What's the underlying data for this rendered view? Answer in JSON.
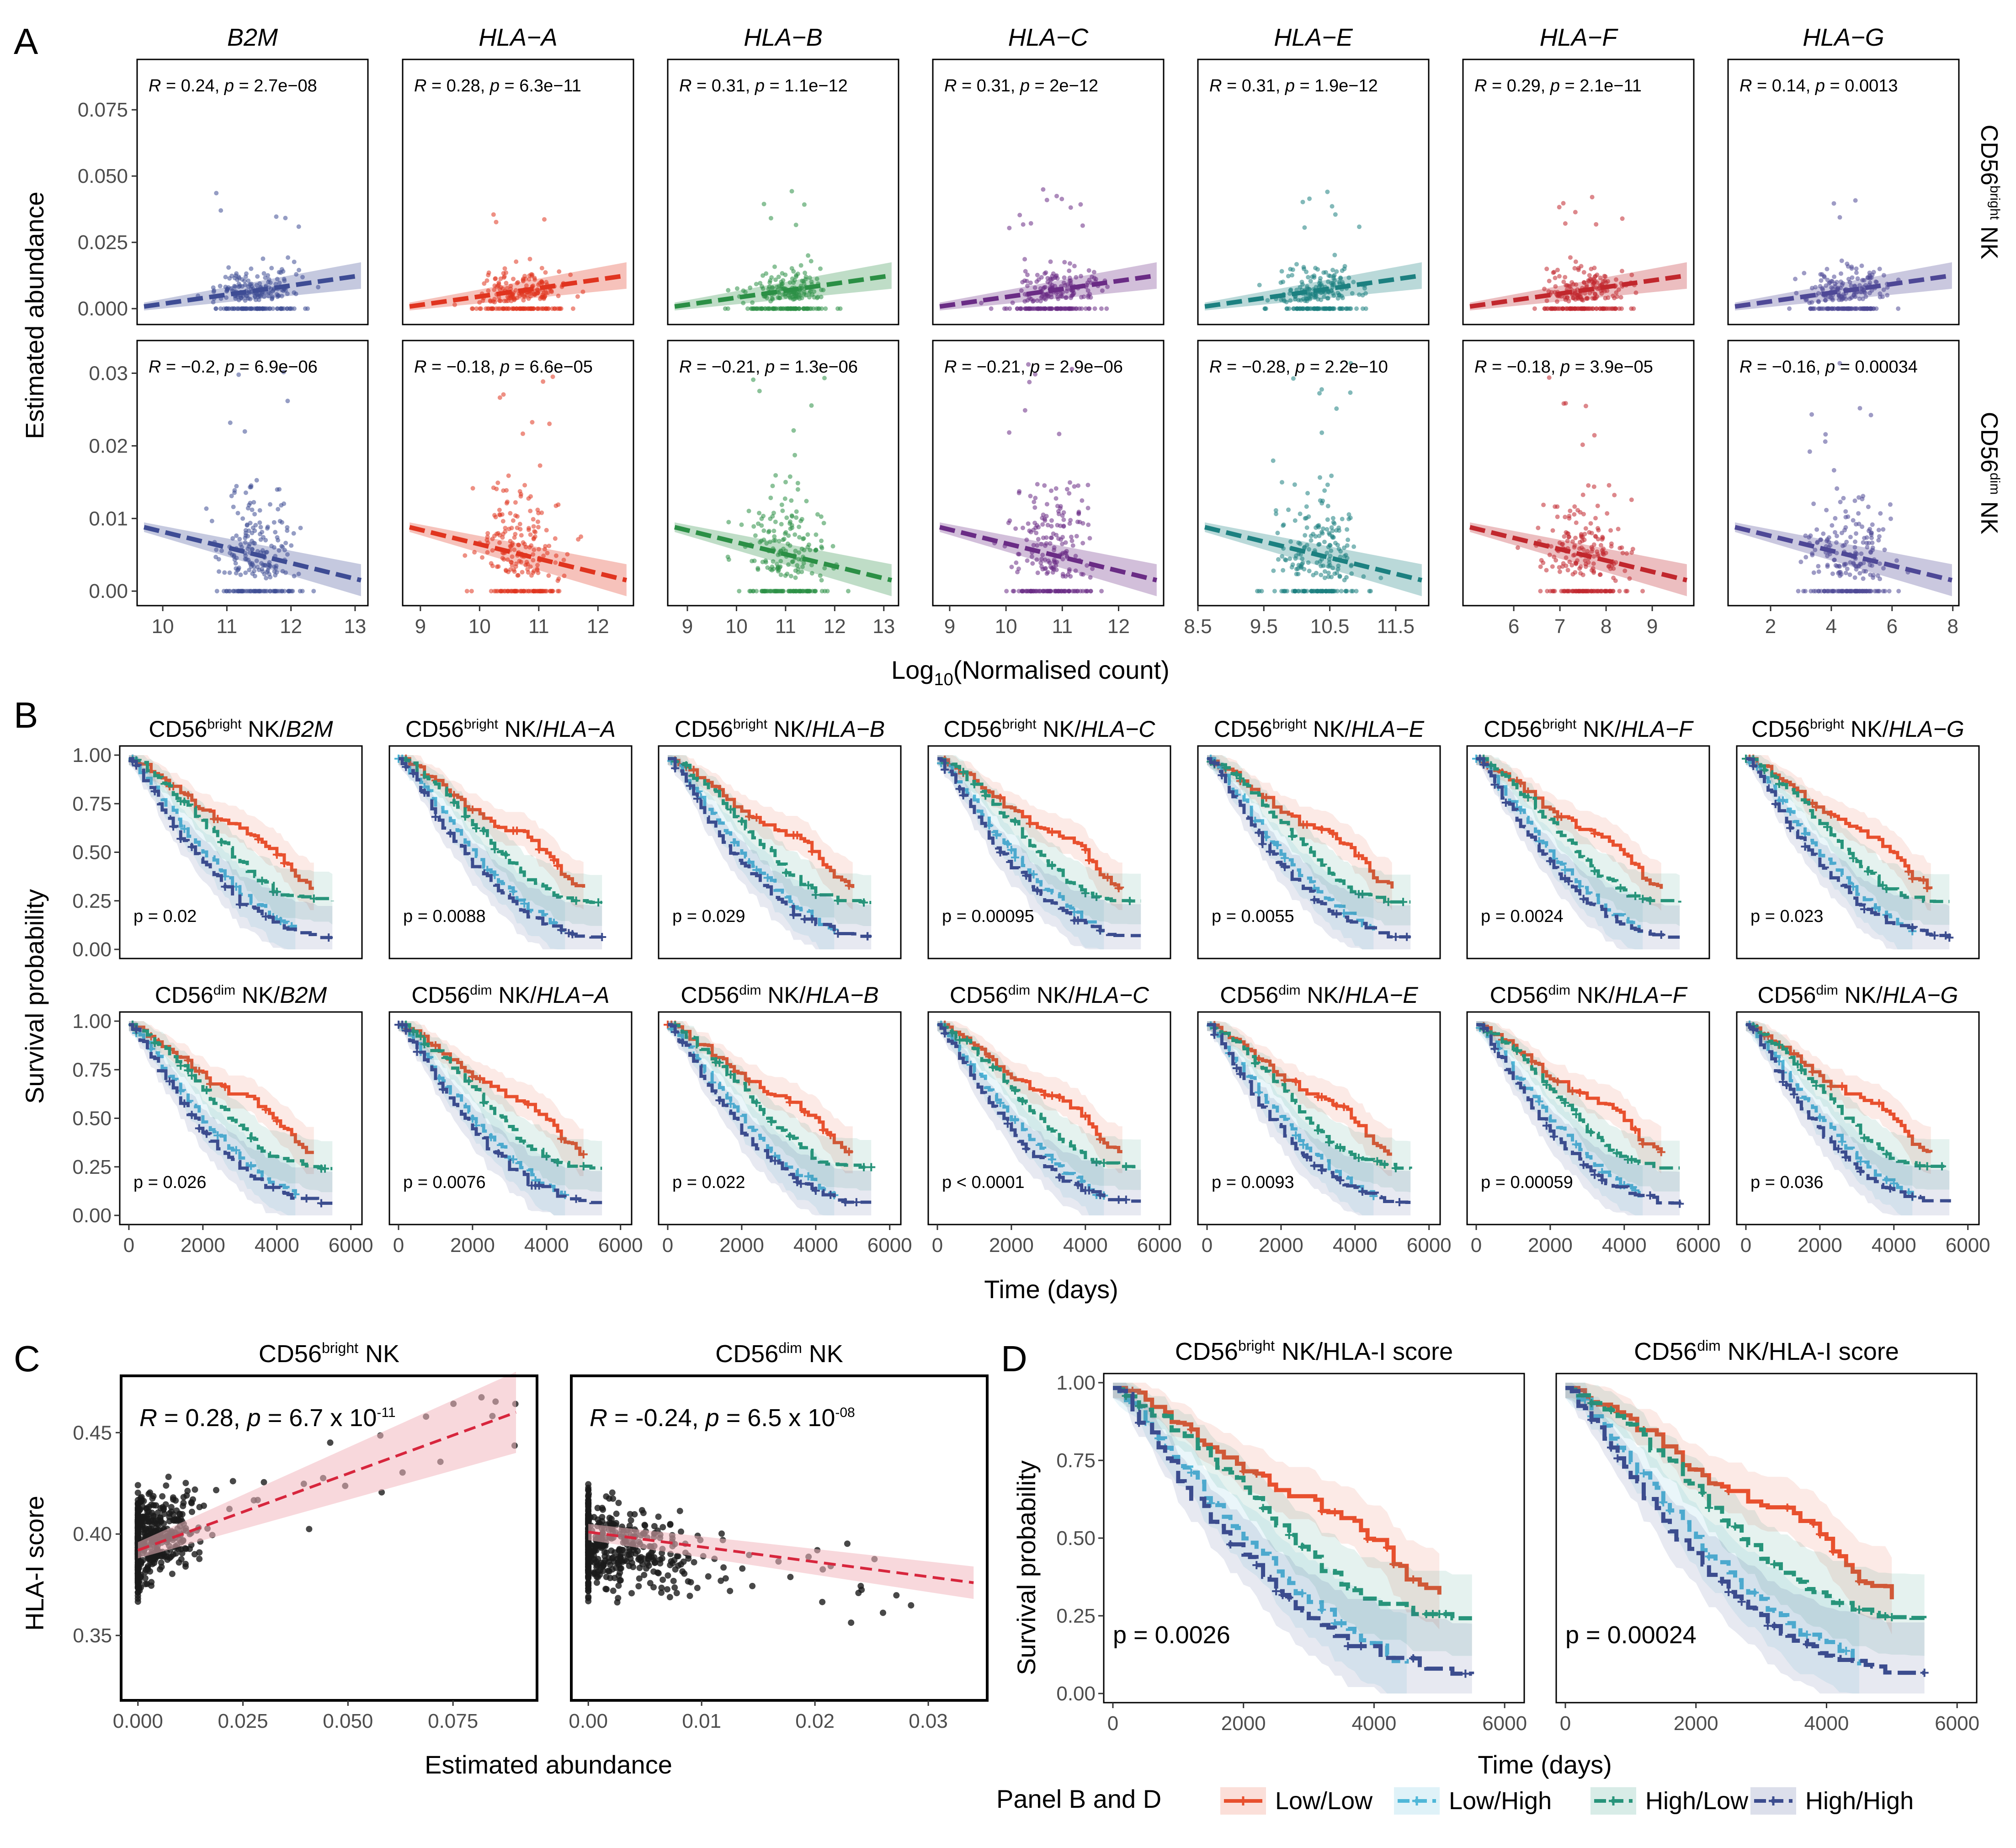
{
  "figure": {
    "panel_labels": [
      "A",
      "B",
      "C",
      "D"
    ],
    "palette": {
      "Low/Low": "#E8502E",
      "Low/High": "#4FB7D8",
      "High/Low": "#27947A",
      "High/High": "#3B4C8E"
    }
  },
  "panel_a": {
    "ylabel": "Estimated abundance",
    "xlabel_main": "Log",
    "xlabel_sub": "10",
    "xlabel_rest": "(Normalised count)",
    "rows": [
      {
        "strip_main": "CD56",
        "strip_sup": "bright",
        "strip_rest": " NK",
        "yticks": [
          0.0,
          0.025,
          0.05,
          0.075
        ],
        "ytick_labels": [
          "0.000",
          "0.025",
          "0.050",
          "0.075"
        ],
        "ylim": [
          -0.006,
          0.094
        ]
      },
      {
        "strip_main": "CD56",
        "strip_sup": "dim",
        "strip_rest": " NK",
        "yticks": [
          0.0,
          0.01,
          0.02,
          0.03
        ],
        "ytick_labels": [
          "0.00",
          "0.01",
          "0.02",
          "0.03"
        ],
        "ylim": [
          -0.002,
          0.0345
        ]
      }
    ],
    "genes": [
      {
        "name": "B2M",
        "color": "#3E4C94",
        "xlim": [
          9.6,
          13.2
        ],
        "xticks": [
          10,
          11,
          12,
          13
        ],
        "xtick_labels": [
          "10",
          "11",
          "12",
          "13"
        ],
        "stats": [
          "R = 0.24, p = 2.7e−08",
          "R = −0.2, p = 6.9e−06"
        ]
      },
      {
        "name": "HLA−A",
        "color": "#E0341F",
        "xlim": [
          8.7,
          12.6
        ],
        "xticks": [
          9,
          10,
          11,
          12
        ],
        "xtick_labels": [
          "9",
          "10",
          "11",
          "12"
        ],
        "stats": [
          "R = 0.28, p = 6.3e−11",
          "R = −0.18, p = 6.6e−05"
        ]
      },
      {
        "name": "HLA−B",
        "color": "#2B8F45",
        "xlim": [
          8.6,
          13.3
        ],
        "xticks": [
          9,
          10,
          11,
          12,
          13
        ],
        "xtick_labels": [
          "9",
          "10",
          "11",
          "12",
          "13"
        ],
        "stats": [
          "R = 0.31, p = 1.1e−12",
          "R = −0.21, p = 1.3e−06"
        ]
      },
      {
        "name": "HLA−C",
        "color": "#6A2C85",
        "xlim": [
          8.7,
          12.8
        ],
        "xticks": [
          9,
          10,
          11,
          12
        ],
        "xtick_labels": [
          "9",
          "10",
          "11",
          "12"
        ],
        "stats": [
          "R = 0.31, p = 2e−12",
          "R = −0.21, p = 2.9e−06"
        ]
      },
      {
        "name": "HLA−E",
        "color": "#1C8080",
        "xlim": [
          8.5,
          12.0
        ],
        "xticks": [
          8.5,
          9.5,
          10.5,
          11.5
        ],
        "xtick_labels": [
          "8.5",
          "9.5",
          "10.5",
          "11.5"
        ],
        "stats": [
          "R = 0.31, p = 1.9e−12",
          "R = −0.28, p = 2.2e−10"
        ]
      },
      {
        "name": "HLA−F",
        "color": "#C1272D",
        "xlim": [
          4.9,
          9.9
        ],
        "xticks": [
          6,
          7,
          8,
          9
        ],
        "xtick_labels": [
          "6",
          "7",
          "8",
          "9"
        ],
        "stats": [
          "R = 0.29, p = 2.1e−11",
          "R = −0.18, p = 3.9e−05"
        ]
      },
      {
        "name": "HLA−G",
        "color": "#4E4896",
        "xlim": [
          0.6,
          8.2
        ],
        "xticks": [
          2,
          4,
          6,
          8
        ],
        "xtick_labels": [
          "2",
          "4",
          "6",
          "8"
        ],
        "stats": [
          "R = 0.14, p = 0.0013",
          "R = −0.16, p = 0.00034"
        ]
      }
    ]
  },
  "panel_b": {
    "ylabel": "Survival probability",
    "xlabel": "Time (days)",
    "yticks": [
      "0.00",
      "0.25",
      "0.50",
      "0.75",
      "1.00"
    ],
    "xticks": [
      "0",
      "2000",
      "4000",
      "6000"
    ],
    "rows": [
      {
        "cell": "CD56",
        "sup": "bright",
        "tail": " NK/",
        "pvalues": [
          "p = 0.02",
          "p = 0.0088",
          "p = 0.029",
          "p = 0.00095",
          "p = 0.0055",
          "p = 0.0024",
          "p = 0.023"
        ]
      },
      {
        "cell": "CD56",
        "sup": "dim",
        "tail": " NK/",
        "pvalues": [
          "p = 0.026",
          "p = 0.0076",
          "p = 0.022",
          "p < 0.0001",
          "p = 0.0093",
          "p = 0.00059",
          "p = 0.036"
        ]
      }
    ],
    "genes": [
      "B2M",
      "HLA−A",
      "HLA−B",
      "HLA−C",
      "HLA−E",
      "HLA−F",
      "HLA−G"
    ]
  },
  "panel_c": {
    "ylabel": "HLA-I score",
    "xlabel": "Estimated abundance",
    "yticks": [
      "0.35",
      "0.40",
      "0.45"
    ],
    "plots": [
      {
        "title_main": "CD56",
        "title_sup": "bright",
        "title_rest": " NK",
        "stat_r": " = 0.28, ",
        "stat_p": " = 6.7 x 10",
        "stat_exp": "-11",
        "xticks": [
          "0.000",
          "0.025",
          "0.050",
          "0.075"
        ],
        "xtick_values": [
          0,
          0.025,
          0.05,
          0.075
        ],
        "xlim": [
          -0.004,
          0.095
        ],
        "ylim": [
          0.318,
          0.478
        ]
      },
      {
        "title_main": "CD56",
        "title_sup": "dim",
        "title_rest": " NK",
        "stat_r": " = -0.24, ",
        "stat_p": " = 6.5 x 10",
        "stat_exp": "-08",
        "xticks": [
          "0.00",
          "0.01",
          "0.02",
          "0.03"
        ],
        "xtick_values": [
          0,
          0.01,
          0.02,
          0.03
        ],
        "xlim": [
          -0.0015,
          0.0352
        ],
        "ylim": [
          0.318,
          0.478
        ]
      }
    ],
    "stat_R_letter": "R",
    "stat_p_letter": "p"
  },
  "panel_d": {
    "ylabel": "Survival probability",
    "xlabel": "Time (days)",
    "yticks": [
      "0.00",
      "0.25",
      "0.50",
      "0.75",
      "1.00"
    ],
    "xticks": [
      "0",
      "2000",
      "4000",
      "6000"
    ],
    "plots": [
      {
        "title_main": "CD56",
        "title_sup": "bright",
        "title_rest": " NK/HLA-I score",
        "pvalue": "p = 0.0026"
      },
      {
        "title_main": "CD56",
        "title_sup": "dim",
        "title_rest": " NK/HLA-I score",
        "pvalue": "p = 0.00024"
      }
    ]
  },
  "legend": {
    "title": "Panel B and D",
    "items": [
      "Low/Low",
      "Low/High",
      "High/Low",
      "High/High"
    ]
  },
  "chart_data": [
    {
      "type": "scatter",
      "title": "Panel A: Estimated abundance vs Log10(Normalised count), CD56bright NK row",
      "xlabel": "Log10(Normalised count)",
      "ylabel": "Estimated abundance",
      "series": [
        {
          "name": "B2M",
          "r": 0.24,
          "p": "2.7e-08"
        },
        {
          "name": "HLA-A",
          "r": 0.28,
          "p": "6.3e-11"
        },
        {
          "name": "HLA-B",
          "r": 0.31,
          "p": "1.1e-12"
        },
        {
          "name": "HLA-C",
          "r": 0.31,
          "p": "2e-12"
        },
        {
          "name": "HLA-E",
          "r": 0.31,
          "p": "1.9e-12"
        },
        {
          "name": "HLA-F",
          "r": 0.29,
          "p": "2.1e-11"
        },
        {
          "name": "HLA-G",
          "r": 0.14,
          "p": "0.0013"
        }
      ]
    },
    {
      "type": "scatter",
      "title": "Panel A: Estimated abundance vs Log10(Normalised count), CD56dim NK row",
      "series": [
        {
          "name": "B2M",
          "r": -0.2,
          "p": "6.9e-06"
        },
        {
          "name": "HLA-A",
          "r": -0.18,
          "p": "6.6e-05"
        },
        {
          "name": "HLA-B",
          "r": -0.21,
          "p": "1.3e-06"
        },
        {
          "name": "HLA-C",
          "r": -0.21,
          "p": "2.9e-06"
        },
        {
          "name": "HLA-E",
          "r": -0.28,
          "p": "2.2e-10"
        },
        {
          "name": "HLA-F",
          "r": -0.18,
          "p": "3.9e-05"
        },
        {
          "name": "HLA-G",
          "r": -0.16,
          "p": "0.00034"
        }
      ]
    },
    {
      "type": "line",
      "title": "Panel B: Kaplan-Meier survival curves",
      "xlabel": "Time (days)",
      "ylabel": "Survival probability",
      "xlim": [
        0,
        6000
      ],
      "ylim": [
        0,
        1
      ],
      "series": [
        {
          "name": "Low/Low",
          "x": [
            0,
            500,
            1000,
            1500,
            2000,
            2500,
            3000,
            3500,
            4000,
            4500,
            5000
          ],
          "y": [
            1.0,
            0.94,
            0.87,
            0.8,
            0.72,
            0.66,
            0.6,
            0.56,
            0.5,
            0.38,
            0.32
          ]
        },
        {
          "name": "Low/High",
          "x": [
            0,
            500,
            1000,
            1500,
            2000,
            2500,
            3000,
            3500,
            4000,
            4500
          ],
          "y": [
            1.0,
            0.88,
            0.75,
            0.62,
            0.5,
            0.4,
            0.3,
            0.22,
            0.14,
            0.08
          ]
        },
        {
          "name": "High/Low",
          "x": [
            0,
            500,
            1000,
            1500,
            2000,
            2500,
            3000,
            3500,
            4000,
            4500,
            5500
          ],
          "y": [
            1.0,
            0.93,
            0.85,
            0.76,
            0.66,
            0.55,
            0.45,
            0.36,
            0.3,
            0.27,
            0.26
          ]
        },
        {
          "name": "High/High",
          "x": [
            0,
            500,
            1000,
            1500,
            2000,
            2500,
            3000,
            3500,
            4000,
            4500,
            5500
          ],
          "y": [
            1.0,
            0.86,
            0.7,
            0.56,
            0.44,
            0.34,
            0.25,
            0.18,
            0.13,
            0.1,
            0.08
          ]
        }
      ]
    },
    {
      "type": "scatter",
      "title": "Panel C: HLA-I score vs Estimated abundance",
      "xlabel": "Estimated abundance",
      "ylabel": "HLA-I score",
      "series": [
        {
          "name": "CD56bright NK",
          "r": 0.28,
          "p": "6.7 x 10^-11",
          "fit_x": [
            0.0,
            0.09
          ],
          "fit_y": [
            0.392,
            0.46
          ]
        },
        {
          "name": "CD56dim NK",
          "r": -0.24,
          "p": "6.5 x 10^-08",
          "fit_x": [
            0.0,
            0.034
          ],
          "fit_y": [
            0.401,
            0.376
          ]
        }
      ]
    },
    {
      "type": "line",
      "title": "Panel D: Kaplan-Meier by NK/HLA-I score",
      "xlabel": "Time (days)",
      "ylabel": "Survival probability",
      "xlim": [
        0,
        6000
      ],
      "ylim": [
        0,
        1
      ],
      "series": [
        {
          "name": "CD56bright NK/HLA-I score",
          "pvalue": 0.0026
        },
        {
          "name": "CD56dim NK/HLA-I score",
          "pvalue": 0.00024
        }
      ]
    }
  ]
}
